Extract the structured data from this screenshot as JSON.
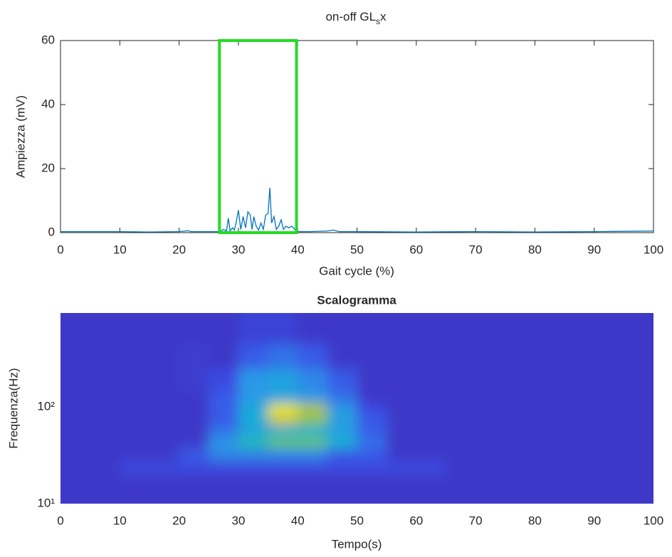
{
  "chart_data": [
    {
      "type": "line",
      "title": [
        "on-off GL",
        "s",
        "x"
      ],
      "x_label": "Gait cycle (%)",
      "y_label": "Ampiezza (mV)",
      "xlim": [
        0,
        100
      ],
      "ylim": [
        0,
        60
      ],
      "xticks": [
        0,
        10,
        20,
        30,
        40,
        50,
        60,
        70,
        80,
        90,
        100
      ],
      "yticks": [
        0,
        20,
        40,
        60
      ],
      "series": [
        {
          "color": "#0072bd",
          "x": [
            0,
            5,
            10,
            15,
            20,
            21.5,
            22,
            25,
            26.5,
            27,
            27.5,
            28,
            28.3,
            28.6,
            29,
            29.3,
            29.6,
            30,
            30.4,
            30.8,
            31.2,
            31.6,
            32,
            32.3,
            32.6,
            33,
            33.4,
            33.8,
            34.2,
            34.6,
            35,
            35.3,
            35.6,
            36,
            36.4,
            36.8,
            37.2,
            37.6,
            38,
            38.5,
            39,
            39.5,
            40,
            42,
            45,
            46,
            47,
            50,
            60,
            70,
            80,
            90,
            100
          ],
          "values": [
            0.3,
            0.3,
            0.3,
            0.2,
            0.3,
            0.6,
            0.3,
            0.3,
            0.3,
            0.5,
            1,
            0.5,
            4.5,
            0.5,
            1.5,
            0.8,
            3,
            7,
            1,
            5,
            1.5,
            6.5,
            5.5,
            1,
            5,
            2,
            0.8,
            3,
            1,
            5.5,
            6,
            14,
            3,
            5,
            1,
            2,
            4,
            1,
            2,
            1.5,
            2,
            1,
            0.3,
            0.3,
            0.5,
            0.8,
            0.3,
            0.3,
            0.2,
            0.3,
            0.2,
            0.3,
            0.5
          ]
        }
      ],
      "highlight": {
        "x": [
          26.8,
          39.8
        ],
        "color": "#22dd22"
      }
    },
    {
      "type": "heatmap",
      "title": "Scalogramma",
      "x_label": "Tempo(s)",
      "y_label": "Frequenza(Hz)",
      "xlim": [
        0,
        100
      ],
      "ylim": [
        10,
        940
      ],
      "log_y": true,
      "xticks": [
        0,
        10,
        20,
        30,
        40,
        50,
        60,
        70,
        80,
        90,
        100
      ],
      "yticks": [
        {
          "value": 10,
          "label": "10¹"
        },
        {
          "value": 100,
          "label": "10²"
        }
      ],
      "xbins": [
        0,
        5,
        10,
        15,
        20,
        25,
        30,
        35,
        40,
        45,
        50,
        55,
        60,
        65,
        70,
        75,
        80,
        85,
        90,
        95,
        100
      ],
      "ybins": [
        10,
        15,
        20,
        28,
        38,
        50,
        65,
        85,
        110,
        150,
        250,
        450,
        940
      ],
      "colormap": [
        "#3e26a8",
        "#3a4ee8",
        "#2c96e8",
        "#10b4d0",
        "#50c870",
        "#c8c030",
        "#f9fb0e"
      ],
      "z": [
        [
          0.08,
          0.08,
          0.08,
          0.08,
          0.08,
          0.08,
          0.08,
          0.08,
          0.08,
          0.08,
          0.08,
          0.08,
          0.08,
          0.08,
          0.08,
          0.08,
          0.08,
          0.08,
          0.08,
          0.08
        ],
        [
          0.08,
          0.08,
          0.08,
          0.08,
          0.08,
          0.08,
          0.08,
          0.08,
          0.08,
          0.08,
          0.08,
          0.08,
          0.08,
          0.08,
          0.08,
          0.08,
          0.08,
          0.08,
          0.08,
          0.08
        ],
        [
          0.08,
          0.08,
          0.14,
          0.14,
          0.14,
          0.14,
          0.14,
          0.14,
          0.14,
          0.14,
          0.14,
          0.14,
          0.14,
          0.08,
          0.08,
          0.08,
          0.08,
          0.08,
          0.08,
          0.08
        ],
        [
          0.08,
          0.08,
          0.08,
          0.08,
          0.2,
          0.3,
          0.3,
          0.3,
          0.3,
          0.2,
          0.2,
          0.08,
          0.08,
          0.08,
          0.08,
          0.08,
          0.08,
          0.08,
          0.08,
          0.08
        ],
        [
          0.08,
          0.08,
          0.08,
          0.08,
          0.08,
          0.35,
          0.55,
          0.7,
          0.7,
          0.5,
          0.25,
          0.08,
          0.08,
          0.08,
          0.08,
          0.08,
          0.08,
          0.08,
          0.08,
          0.08
        ],
        [
          0.08,
          0.08,
          0.08,
          0.08,
          0.08,
          0.25,
          0.4,
          0.45,
          0.45,
          0.35,
          0.2,
          0.08,
          0.08,
          0.08,
          0.08,
          0.08,
          0.08,
          0.08,
          0.08,
          0.08
        ],
        [
          0.08,
          0.08,
          0.08,
          0.08,
          0.08,
          0.2,
          0.45,
          0.85,
          0.75,
          0.4,
          0.2,
          0.08,
          0.08,
          0.08,
          0.08,
          0.08,
          0.08,
          0.08,
          0.08,
          0.08
        ],
        [
          0.08,
          0.08,
          0.08,
          0.08,
          0.08,
          0.2,
          0.45,
          0.95,
          0.8,
          0.35,
          0.15,
          0.08,
          0.08,
          0.08,
          0.08,
          0.08,
          0.08,
          0.08,
          0.08,
          0.08
        ],
        [
          0.08,
          0.08,
          0.08,
          0.08,
          0.08,
          0.2,
          0.35,
          0.4,
          0.35,
          0.25,
          0.08,
          0.08,
          0.08,
          0.08,
          0.08,
          0.08,
          0.08,
          0.08,
          0.08,
          0.08
        ],
        [
          0.08,
          0.08,
          0.08,
          0.08,
          0.1,
          0.15,
          0.35,
          0.4,
          0.3,
          0.2,
          0.08,
          0.08,
          0.08,
          0.08,
          0.08,
          0.08,
          0.08,
          0.08,
          0.08,
          0.08
        ],
        [
          0.08,
          0.08,
          0.08,
          0.08,
          0.1,
          0.08,
          0.2,
          0.25,
          0.2,
          0.08,
          0.08,
          0.08,
          0.08,
          0.08,
          0.08,
          0.08,
          0.08,
          0.08,
          0.08,
          0.08
        ],
        [
          0.08,
          0.08,
          0.08,
          0.08,
          0.08,
          0.08,
          0.12,
          0.12,
          0.08,
          0.08,
          0.08,
          0.08,
          0.08,
          0.08,
          0.08,
          0.08,
          0.08,
          0.08,
          0.08,
          0.08
        ]
      ]
    }
  ]
}
